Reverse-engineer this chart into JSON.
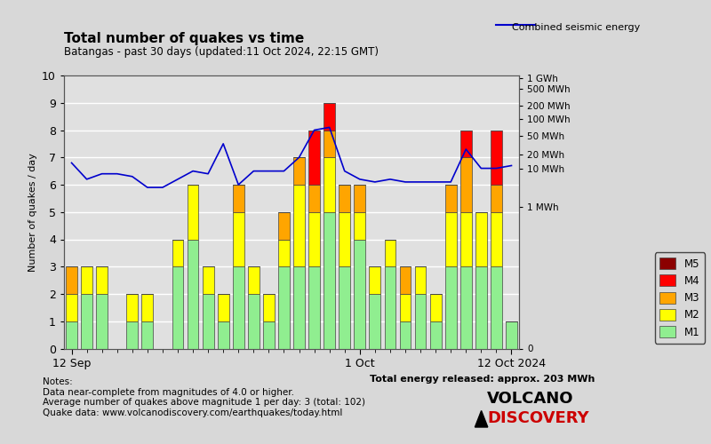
{
  "title": "Total number of quakes vs time",
  "subtitle": "Batangas - past 30 days (updated:11 Oct 2024, 22:15 GMT)",
  "ylabel": "Number of quakes / day",
  "right_label": "Combined seismic energy",
  "xlabel_ticks": [
    "12 Sep",
    "1 Oct",
    "12 Oct 2024"
  ],
  "xlabel_tick_positions": [
    0,
    19,
    29
  ],
  "notes": "Notes:\nData near-complete from magnitudes of 4.0 or higher.\nAverage number of quakes above magnitude 1 per day: 3 (total: 102)\nQuake data: www.volcanodiscovery.com/earthquakes/today.html",
  "energy_note": "Total energy released: approx. 203 MWh",
  "right_axis_labels": [
    "1 GWh",
    "500 MWh",
    "200 MWh",
    "100 MWh",
    "50 MWh",
    "20 MWh",
    "10 MWh",
    "1 MWh",
    "0"
  ],
  "right_axis_positions": [
    9.9,
    9.5,
    8.9,
    8.4,
    7.8,
    7.1,
    6.6,
    5.2,
    0.0
  ],
  "colors": {
    "M1": "#90EE90",
    "M2": "#FFFF00",
    "M3": "#FFA500",
    "M4": "#FF0000",
    "M5": "#8B0000",
    "line": "#0000CD",
    "background": "#D8D8D8",
    "plot_bg": "#E0E0E0",
    "grid": "#FFFFFF"
  },
  "bar_data": [
    {
      "M1": 1,
      "M2": 1,
      "M3": 1,
      "M4": 0,
      "M5": 0
    },
    {
      "M1": 2,
      "M2": 1,
      "M3": 0,
      "M4": 0,
      "M5": 0
    },
    {
      "M1": 2,
      "M2": 1,
      "M3": 0,
      "M4": 0,
      "M5": 0
    },
    {
      "M1": 0,
      "M2": 0,
      "M3": 0,
      "M4": 0,
      "M5": 0
    },
    {
      "M1": 1,
      "M2": 1,
      "M3": 0,
      "M4": 0,
      "M5": 0
    },
    {
      "M1": 1,
      "M2": 1,
      "M3": 0,
      "M4": 0,
      "M5": 0
    },
    {
      "M1": 0,
      "M2": 0,
      "M3": 0,
      "M4": 0,
      "M5": 0
    },
    {
      "M1": 3,
      "M2": 1,
      "M3": 0,
      "M4": 0,
      "M5": 0
    },
    {
      "M1": 4,
      "M2": 2,
      "M3": 0,
      "M4": 0,
      "M5": 0
    },
    {
      "M1": 2,
      "M2": 1,
      "M3": 0,
      "M4": 0,
      "M5": 0
    },
    {
      "M1": 1,
      "M2": 1,
      "M3": 0,
      "M4": 0,
      "M5": 0
    },
    {
      "M1": 3,
      "M2": 2,
      "M3": 1,
      "M4": 0,
      "M5": 0
    },
    {
      "M1": 2,
      "M2": 1,
      "M3": 0,
      "M4": 0,
      "M5": 0
    },
    {
      "M1": 1,
      "M2": 1,
      "M3": 0,
      "M4": 0,
      "M5": 0
    },
    {
      "M1": 3,
      "M2": 1,
      "M3": 1,
      "M4": 0,
      "M5": 0
    },
    {
      "M1": 3,
      "M2": 3,
      "M3": 1,
      "M4": 0,
      "M5": 0
    },
    {
      "M1": 3,
      "M2": 2,
      "M3": 1,
      "M4": 2,
      "M5": 0
    },
    {
      "M1": 5,
      "M2": 2,
      "M3": 1,
      "M4": 1,
      "M5": 0
    },
    {
      "M1": 3,
      "M2": 2,
      "M3": 1,
      "M4": 0,
      "M5": 0
    },
    {
      "M1": 4,
      "M2": 1,
      "M3": 1,
      "M4": 0,
      "M5": 0
    },
    {
      "M1": 2,
      "M2": 1,
      "M3": 0,
      "M4": 0,
      "M5": 0
    },
    {
      "M1": 3,
      "M2": 1,
      "M3": 0,
      "M4": 0,
      "M5": 0
    },
    {
      "M1": 1,
      "M2": 1,
      "M3": 1,
      "M4": 0,
      "M5": 0
    },
    {
      "M1": 2,
      "M2": 1,
      "M3": 0,
      "M4": 0,
      "M5": 0
    },
    {
      "M1": 1,
      "M2": 1,
      "M3": 0,
      "M4": 0,
      "M5": 0
    },
    {
      "M1": 3,
      "M2": 2,
      "M3": 1,
      "M4": 0,
      "M5": 0
    },
    {
      "M1": 3,
      "M2": 2,
      "M3": 2,
      "M4": 1,
      "M5": 0
    },
    {
      "M1": 3,
      "M2": 2,
      "M3": 0,
      "M4": 0,
      "M5": 0
    },
    {
      "M1": 3,
      "M2": 2,
      "M3": 1,
      "M4": 2,
      "M5": 0
    },
    {
      "M1": 1,
      "M2": 0,
      "M3": 0,
      "M4": 0,
      "M5": 0
    }
  ],
  "line_data": [
    6.8,
    6.2,
    6.4,
    6.4,
    6.3,
    5.9,
    5.9,
    6.2,
    6.5,
    6.4,
    7.5,
    6.0,
    6.5,
    6.5,
    6.5,
    7.0,
    8.0,
    8.1,
    6.5,
    6.2,
    6.1,
    6.2,
    6.1,
    6.1,
    6.1,
    6.1,
    7.3,
    6.6,
    6.6,
    6.7
  ],
  "ylim": [
    0,
    10
  ],
  "n_days": 30
}
